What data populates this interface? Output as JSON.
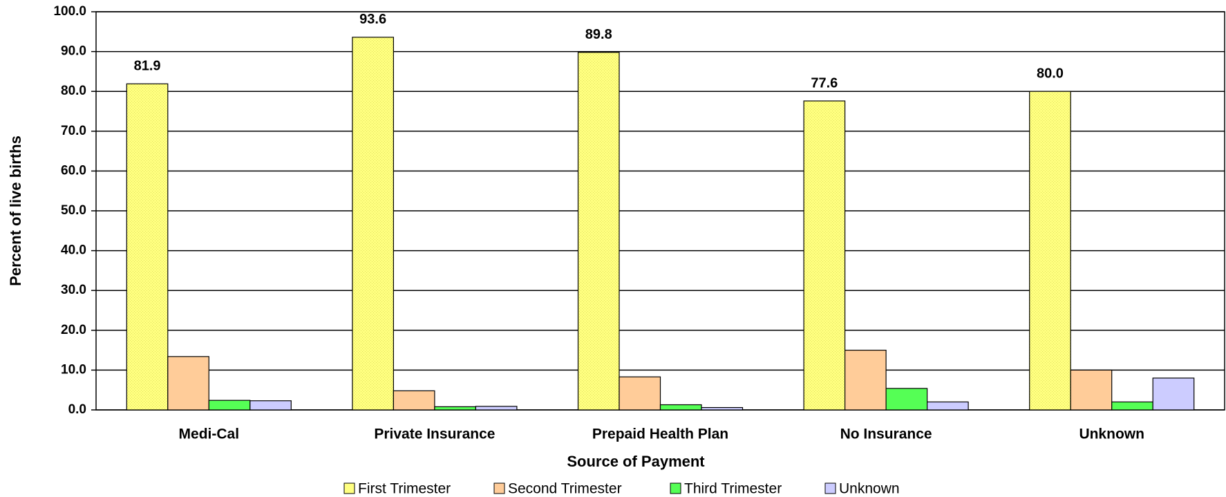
{
  "chart_data": {
    "type": "bar",
    "x_label": "Source of Payment",
    "y_label": "Percent of live births",
    "categories": [
      "Medi-Cal",
      "Private Insurance",
      "Prepaid Health Plan",
      "No Insurance",
      "Unknown"
    ],
    "series": [
      {
        "name": "First Trimester",
        "color": "#ffff80",
        "values": [
          81.9,
          93.6,
          89.8,
          77.6,
          80.0
        ],
        "value_labels": [
          "81.9",
          "93.6",
          "89.8",
          "77.6",
          "80.0"
        ]
      },
      {
        "name": "Second Trimester",
        "color": "#ffcc99",
        "values": [
          13.4,
          4.8,
          8.3,
          15.0,
          10.0
        ]
      },
      {
        "name": "Third Trimester",
        "color": "#55ff55",
        "values": [
          2.4,
          0.8,
          1.3,
          5.4,
          2.0
        ]
      },
      {
        "name": "Unknown",
        "color": "#ccccff",
        "values": [
          2.3,
          0.9,
          0.6,
          2.0,
          8.0
        ]
      }
    ],
    "ylim": [
      0,
      100
    ],
    "yticks": [
      {
        "value": 0,
        "label": "0.0"
      },
      {
        "value": 10,
        "label": "10.0"
      },
      {
        "value": 20,
        "label": "20.0"
      },
      {
        "value": 30,
        "label": "30.0"
      },
      {
        "value": 40,
        "label": "40.0"
      },
      {
        "value": 50,
        "label": "50.0"
      },
      {
        "value": 60,
        "label": "60.0"
      },
      {
        "value": 70,
        "label": "70.0"
      },
      {
        "value": 80,
        "label": "80.0"
      },
      {
        "value": 90,
        "label": "90.0"
      },
      {
        "value": 100,
        "label": "100.0"
      }
    ],
    "grid": true,
    "legend": "bottom"
  }
}
